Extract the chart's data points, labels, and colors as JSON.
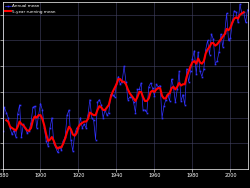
{
  "background_color": "#000000",
  "plot_bg_color": "#000000",
  "grid_color": "#444466",
  "x_min": 1880,
  "x_max": 2009,
  "y_min": -0.6,
  "y_max": 0.7,
  "annual_color": "#3333ff",
  "smooth_color": "#ff0000",
  "legend_annual": "Annual mean",
  "legend_smooth": "5-year running mean",
  "annual_data": [
    [
      1880,
      -0.3
    ],
    [
      1881,
      -0.12
    ],
    [
      1882,
      -0.16
    ],
    [
      1883,
      -0.2
    ],
    [
      1884,
      -0.28
    ],
    [
      1885,
      -0.33
    ],
    [
      1886,
      -0.3
    ],
    [
      1887,
      -0.35
    ],
    [
      1888,
      -0.17
    ],
    [
      1889,
      -0.1
    ],
    [
      1890,
      -0.35
    ],
    [
      1891,
      -0.25
    ],
    [
      1892,
      -0.28
    ],
    [
      1893,
      -0.32
    ],
    [
      1894,
      -0.3
    ],
    [
      1895,
      -0.24
    ],
    [
      1896,
      -0.12
    ],
    [
      1897,
      -0.11
    ],
    [
      1898,
      -0.28
    ],
    [
      1899,
      -0.18
    ],
    [
      1900,
      -0.09
    ],
    [
      1901,
      -0.14
    ],
    [
      1902,
      -0.28
    ],
    [
      1903,
      -0.38
    ],
    [
      1904,
      -0.42
    ],
    [
      1905,
      -0.28
    ],
    [
      1906,
      -0.2
    ],
    [
      1907,
      -0.4
    ],
    [
      1908,
      -0.43
    ],
    [
      1909,
      -0.47
    ],
    [
      1910,
      -0.43
    ],
    [
      1911,
      -0.45
    ],
    [
      1912,
      -0.38
    ],
    [
      1913,
      -0.35
    ],
    [
      1914,
      -0.18
    ],
    [
      1915,
      -0.14
    ],
    [
      1916,
      -0.37
    ],
    [
      1917,
      -0.46
    ],
    [
      1918,
      -0.33
    ],
    [
      1919,
      -0.28
    ],
    [
      1920,
      -0.28
    ],
    [
      1921,
      -0.2
    ],
    [
      1922,
      -0.28
    ],
    [
      1923,
      -0.25
    ],
    [
      1924,
      -0.28
    ],
    [
      1925,
      -0.18
    ],
    [
      1926,
      -0.06
    ],
    [
      1927,
      -0.2
    ],
    [
      1928,
      -0.22
    ],
    [
      1929,
      -0.37
    ],
    [
      1930,
      -0.08
    ],
    [
      1931,
      -0.06
    ],
    [
      1932,
      -0.1
    ],
    [
      1933,
      -0.2
    ],
    [
      1934,
      -0.14
    ],
    [
      1935,
      -0.18
    ],
    [
      1936,
      -0.16
    ],
    [
      1937,
      -0.02
    ],
    [
      1938,
      -0.02
    ],
    [
      1939,
      -0.04
    ],
    [
      1940,
      0.06
    ],
    [
      1941,
      0.12
    ],
    [
      1942,
      0.06
    ],
    [
      1943,
      0.08
    ],
    [
      1944,
      0.2
    ],
    [
      1945,
      0.08
    ],
    [
      1946,
      -0.06
    ],
    [
      1947,
      -0.04
    ],
    [
      1948,
      -0.04
    ],
    [
      1949,
      -0.08
    ],
    [
      1950,
      -0.16
    ],
    [
      1951,
      0.02
    ],
    [
      1952,
      0.02
    ],
    [
      1953,
      0.07
    ],
    [
      1954,
      -0.14
    ],
    [
      1955,
      -0.14
    ],
    [
      1956,
      -0.16
    ],
    [
      1957,
      0.04
    ],
    [
      1958,
      0.07
    ],
    [
      1959,
      0.03
    ],
    [
      1960,
      -0.03
    ],
    [
      1961,
      0.06
    ],
    [
      1962,
      0.04
    ],
    [
      1963,
      0.05
    ],
    [
      1964,
      -0.2
    ],
    [
      1965,
      -0.11
    ],
    [
      1966,
      -0.06
    ],
    [
      1967,
      -0.02
    ],
    [
      1968,
      -0.07
    ],
    [
      1969,
      0.1
    ],
    [
      1970,
      0.04
    ],
    [
      1971,
      -0.08
    ],
    [
      1972,
      0.02
    ],
    [
      1973,
      0.16
    ],
    [
      1974,
      -0.07
    ],
    [
      1975,
      -0.02
    ],
    [
      1976,
      -0.1
    ],
    [
      1977,
      0.18
    ],
    [
      1978,
      0.08
    ],
    [
      1979,
      0.16
    ],
    [
      1980,
      0.26
    ],
    [
      1981,
      0.32
    ],
    [
      1982,
      0.14
    ],
    [
      1983,
      0.31
    ],
    [
      1984,
      0.16
    ],
    [
      1985,
      0.12
    ],
    [
      1986,
      0.18
    ],
    [
      1987,
      0.33
    ],
    [
      1988,
      0.4
    ],
    [
      1989,
      0.29
    ],
    [
      1990,
      0.45
    ],
    [
      1991,
      0.41
    ],
    [
      1992,
      0.22
    ],
    [
      1993,
      0.24
    ],
    [
      1994,
      0.31
    ],
    [
      1995,
      0.45
    ],
    [
      1996,
      0.35
    ],
    [
      1997,
      0.46
    ],
    [
      1998,
      0.61
    ],
    [
      1999,
      0.4
    ],
    [
      2000,
      0.42
    ],
    [
      2001,
      0.54
    ],
    [
      2002,
      0.63
    ],
    [
      2003,
      0.62
    ],
    [
      2004,
      0.54
    ],
    [
      2005,
      0.68
    ],
    [
      2006,
      0.61
    ],
    [
      2007,
      0.62
    ],
    [
      2008,
      0.54
    ],
    [
      2009,
      0.64
    ]
  ],
  "smooth_data": [
    [
      1882,
      -0.22
    ],
    [
      1883,
      -0.23
    ],
    [
      1884,
      -0.27
    ],
    [
      1885,
      -0.28
    ],
    [
      1886,
      -0.29
    ],
    [
      1887,
      -0.3
    ],
    [
      1888,
      -0.27
    ],
    [
      1889,
      -0.23
    ],
    [
      1890,
      -0.25
    ],
    [
      1891,
      -0.26
    ],
    [
      1892,
      -0.28
    ],
    [
      1893,
      -0.3
    ],
    [
      1894,
      -0.3
    ],
    [
      1895,
      -0.28
    ],
    [
      1896,
      -0.22
    ],
    [
      1897,
      -0.19
    ],
    [
      1898,
      -0.2
    ],
    [
      1899,
      -0.18
    ],
    [
      1900,
      -0.18
    ],
    [
      1901,
      -0.21
    ],
    [
      1902,
      -0.26
    ],
    [
      1903,
      -0.33
    ],
    [
      1904,
      -0.38
    ],
    [
      1905,
      -0.37
    ],
    [
      1906,
      -0.35
    ],
    [
      1907,
      -0.38
    ],
    [
      1908,
      -0.42
    ],
    [
      1909,
      -0.44
    ],
    [
      1910,
      -0.43
    ],
    [
      1911,
      -0.43
    ],
    [
      1912,
      -0.4
    ],
    [
      1913,
      -0.36
    ],
    [
      1914,
      -0.31
    ],
    [
      1915,
      -0.27
    ],
    [
      1916,
      -0.29
    ],
    [
      1917,
      -0.33
    ],
    [
      1918,
      -0.34
    ],
    [
      1919,
      -0.32
    ],
    [
      1920,
      -0.27
    ],
    [
      1921,
      -0.25
    ],
    [
      1922,
      -0.24
    ],
    [
      1923,
      -0.23
    ],
    [
      1924,
      -0.23
    ],
    [
      1925,
      -0.21
    ],
    [
      1926,
      -0.16
    ],
    [
      1927,
      -0.17
    ],
    [
      1928,
      -0.18
    ],
    [
      1929,
      -0.18
    ],
    [
      1930,
      -0.14
    ],
    [
      1931,
      -0.11
    ],
    [
      1932,
      -0.12
    ],
    [
      1933,
      -0.14
    ],
    [
      1934,
      -0.14
    ],
    [
      1935,
      -0.12
    ],
    [
      1936,
      -0.1
    ],
    [
      1937,
      -0.04
    ],
    [
      1938,
      0.0
    ],
    [
      1939,
      0.03
    ],
    [
      1940,
      0.06
    ],
    [
      1941,
      0.1
    ],
    [
      1942,
      0.1
    ],
    [
      1943,
      0.08
    ],
    [
      1944,
      0.08
    ],
    [
      1945,
      0.06
    ],
    [
      1946,
      0.02
    ],
    [
      1947,
      -0.01
    ],
    [
      1948,
      -0.03
    ],
    [
      1949,
      -0.05
    ],
    [
      1950,
      -0.07
    ],
    [
      1951,
      -0.04
    ],
    [
      1952,
      0.0
    ],
    [
      1953,
      0.0
    ],
    [
      1954,
      -0.04
    ],
    [
      1955,
      -0.07
    ],
    [
      1956,
      -0.07
    ],
    [
      1957,
      -0.05
    ],
    [
      1958,
      0.0
    ],
    [
      1959,
      0.01
    ],
    [
      1960,
      0.0
    ],
    [
      1961,
      0.02
    ],
    [
      1962,
      0.03
    ],
    [
      1963,
      0.03
    ],
    [
      1964,
      -0.03
    ],
    [
      1965,
      -0.05
    ],
    [
      1966,
      -0.05
    ],
    [
      1967,
      -0.02
    ],
    [
      1968,
      -0.01
    ],
    [
      1969,
      0.03
    ],
    [
      1970,
      0.04
    ],
    [
      1971,
      0.02
    ],
    [
      1972,
      0.04
    ],
    [
      1973,
      0.07
    ],
    [
      1974,
      0.05
    ],
    [
      1975,
      0.06
    ],
    [
      1976,
      0.06
    ],
    [
      1977,
      0.12
    ],
    [
      1978,
      0.16
    ],
    [
      1979,
      0.2
    ],
    [
      1980,
      0.23
    ],
    [
      1981,
      0.24
    ],
    [
      1982,
      0.22
    ],
    [
      1983,
      0.26
    ],
    [
      1984,
      0.23
    ],
    [
      1985,
      0.22
    ],
    [
      1986,
      0.24
    ],
    [
      1987,
      0.3
    ],
    [
      1988,
      0.33
    ],
    [
      1989,
      0.35
    ],
    [
      1990,
      0.38
    ],
    [
      1991,
      0.38
    ],
    [
      1992,
      0.36
    ],
    [
      1993,
      0.37
    ],
    [
      1994,
      0.39
    ],
    [
      1995,
      0.41
    ],
    [
      1996,
      0.43
    ],
    [
      1997,
      0.45
    ],
    [
      1998,
      0.49
    ],
    [
      1999,
      0.48
    ],
    [
      2000,
      0.5
    ],
    [
      2001,
      0.54
    ],
    [
      2002,
      0.57
    ],
    [
      2003,
      0.58
    ],
    [
      2004,
      0.57
    ],
    [
      2005,
      0.6
    ],
    [
      2006,
      0.61
    ],
    [
      2007,
      0.62
    ]
  ]
}
